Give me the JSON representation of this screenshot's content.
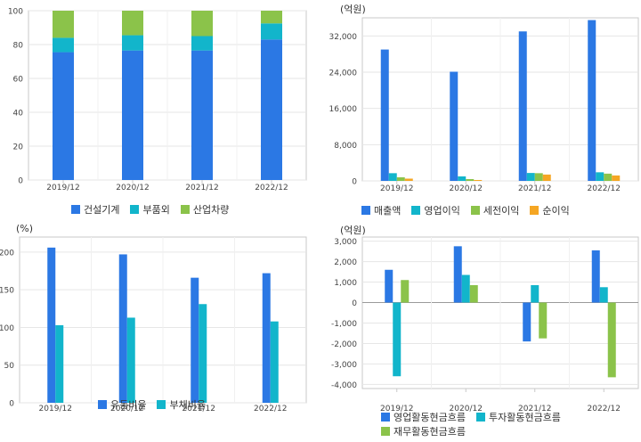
{
  "chart_data": [
    {
      "type": "bar",
      "stacked": true,
      "unit": "",
      "categories": [
        "2019/12",
        "2020/12",
        "2021/12",
        "2022/12"
      ],
      "ylim": [
        0,
        100
      ],
      "yticks": [
        0,
        20,
        40,
        60,
        80,
        100
      ],
      "ytick_labels": [
        "0",
        "20",
        "40",
        "60",
        "80",
        "100"
      ],
      "series": [
        {
          "name": "건설기계",
          "color": "#2b78e4",
          "values": [
            75.5,
            76.5,
            76.5,
            83
          ]
        },
        {
          "name": "부품외",
          "color": "#12b5cb",
          "values": [
            8.5,
            9,
            8.5,
            9.5
          ]
        },
        {
          "name": "산업차량",
          "color": "#8bc34a",
          "values": [
            16,
            14.5,
            15,
            7.5
          ]
        }
      ],
      "grid": true,
      "legend_position": "bottom"
    },
    {
      "type": "bar",
      "stacked": false,
      "unit": "(억원)",
      "categories": [
        "2019/12",
        "2020/12",
        "2021/12",
        "2022/12"
      ],
      "ylim": [
        0,
        36000
      ],
      "yticks": [
        0,
        8000,
        16000,
        24000,
        32000
      ],
      "ytick_labels": [
        "0",
        "8,000",
        "16,000",
        "24,000",
        "32,000"
      ],
      "series": [
        {
          "name": "매출액",
          "color": "#2b78e4",
          "values": [
            29000,
            24100,
            33000,
            35500
          ]
        },
        {
          "name": "영업이익",
          "color": "#12b5cb",
          "values": [
            1700,
            1000,
            1750,
            1900
          ]
        },
        {
          "name": "세전이익",
          "color": "#8bc34a",
          "values": [
            800,
            400,
            1700,
            1600
          ]
        },
        {
          "name": "순이익",
          "color": "#f5a623",
          "values": [
            500,
            200,
            1400,
            1200
          ]
        }
      ],
      "grid": true,
      "legend_position": "bottom"
    },
    {
      "type": "bar",
      "stacked": false,
      "unit": "(%)",
      "categories": [
        "2019/12",
        "2020/12",
        "2021/12",
        "2022/12"
      ],
      "ylim": [
        0,
        220
      ],
      "yticks": [
        0,
        50,
        100,
        150,
        200
      ],
      "ytick_labels": [
        "0",
        "50",
        "100",
        "150",
        "200"
      ],
      "series": [
        {
          "name": "유동비율",
          "color": "#2b78e4",
          "values": [
            206,
            197,
            166,
            172
          ]
        },
        {
          "name": "부채비율",
          "color": "#12b5cb",
          "values": [
            103,
            113,
            131,
            108
          ]
        }
      ],
      "grid": true,
      "legend_position": "bottom"
    },
    {
      "type": "bar",
      "stacked": false,
      "unit": "(억원)",
      "categories": [
        "2019/12",
        "2020/12",
        "2021/12",
        "2022/12"
      ],
      "ylim": [
        -4200,
        3200
      ],
      "yticks": [
        -4000,
        -3000,
        -2000,
        -1000,
        0,
        1000,
        2000,
        3000
      ],
      "ytick_labels": [
        "-4,000",
        "-3,000",
        "-2,000",
        "-1,000",
        "0",
        "1,000",
        "2,000",
        "3,000"
      ],
      "series": [
        {
          "name": "영업활동현금흐름",
          "color": "#2b78e4",
          "values": [
            1600,
            2750,
            -1900,
            2550
          ]
        },
        {
          "name": "투자활동현금흐름",
          "color": "#12b5cb",
          "values": [
            -3600,
            1350,
            850,
            750
          ]
        },
        {
          "name": "재무활동현금흐름",
          "color": "#8bc34a",
          "values": [
            1100,
            850,
            -1750,
            -3650
          ]
        }
      ],
      "grid": true,
      "legend_position": "bottom"
    }
  ]
}
